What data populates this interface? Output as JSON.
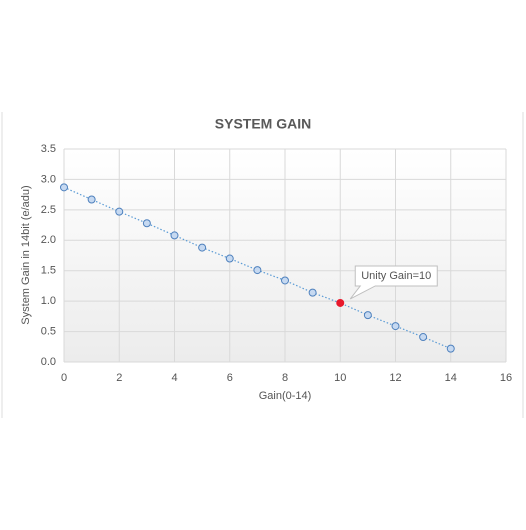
{
  "chart_data": {
    "type": "line",
    "title": "SYSTEM GAIN",
    "x_label": "Gain(0-14)",
    "y_label": "System Gain in 14bit (e/adu)",
    "x": [
      0,
      1,
      2,
      3,
      4,
      5,
      6,
      7,
      8,
      9,
      10,
      11,
      12,
      13,
      14
    ],
    "series": [
      {
        "color": "#5b9bd5",
        "values": [
          2.87,
          2.67,
          2.47,
          2.28,
          2.08,
          1.88,
          1.7,
          1.51,
          1.34,
          1.14,
          0.97,
          0.77,
          0.59,
          0.41,
          0.22
        ]
      }
    ],
    "highlight": {
      "index": 10,
      "color": "#e8192c"
    },
    "annotation": {
      "text": "Unity Gain=10",
      "point": 10
    },
    "xlim": [
      0,
      16
    ],
    "xticks": [
      0,
      2,
      4,
      6,
      8,
      10,
      12,
      14,
      16
    ],
    "ylim": [
      0,
      3.5
    ],
    "yticks": [
      {
        "value": 0,
        "label": "0.0"
      },
      {
        "value": 0.5,
        "label": "0.5"
      },
      {
        "value": 1,
        "label": "1.0"
      },
      {
        "value": 1.5,
        "label": "1.5"
      },
      {
        "value": 2,
        "label": "2.0"
      },
      {
        "value": 2.5,
        "label": "2.5"
      },
      {
        "value": 3,
        "label": "3.0"
      },
      {
        "value": 3.5,
        "label": "3.5"
      }
    ],
    "grid": true
  }
}
